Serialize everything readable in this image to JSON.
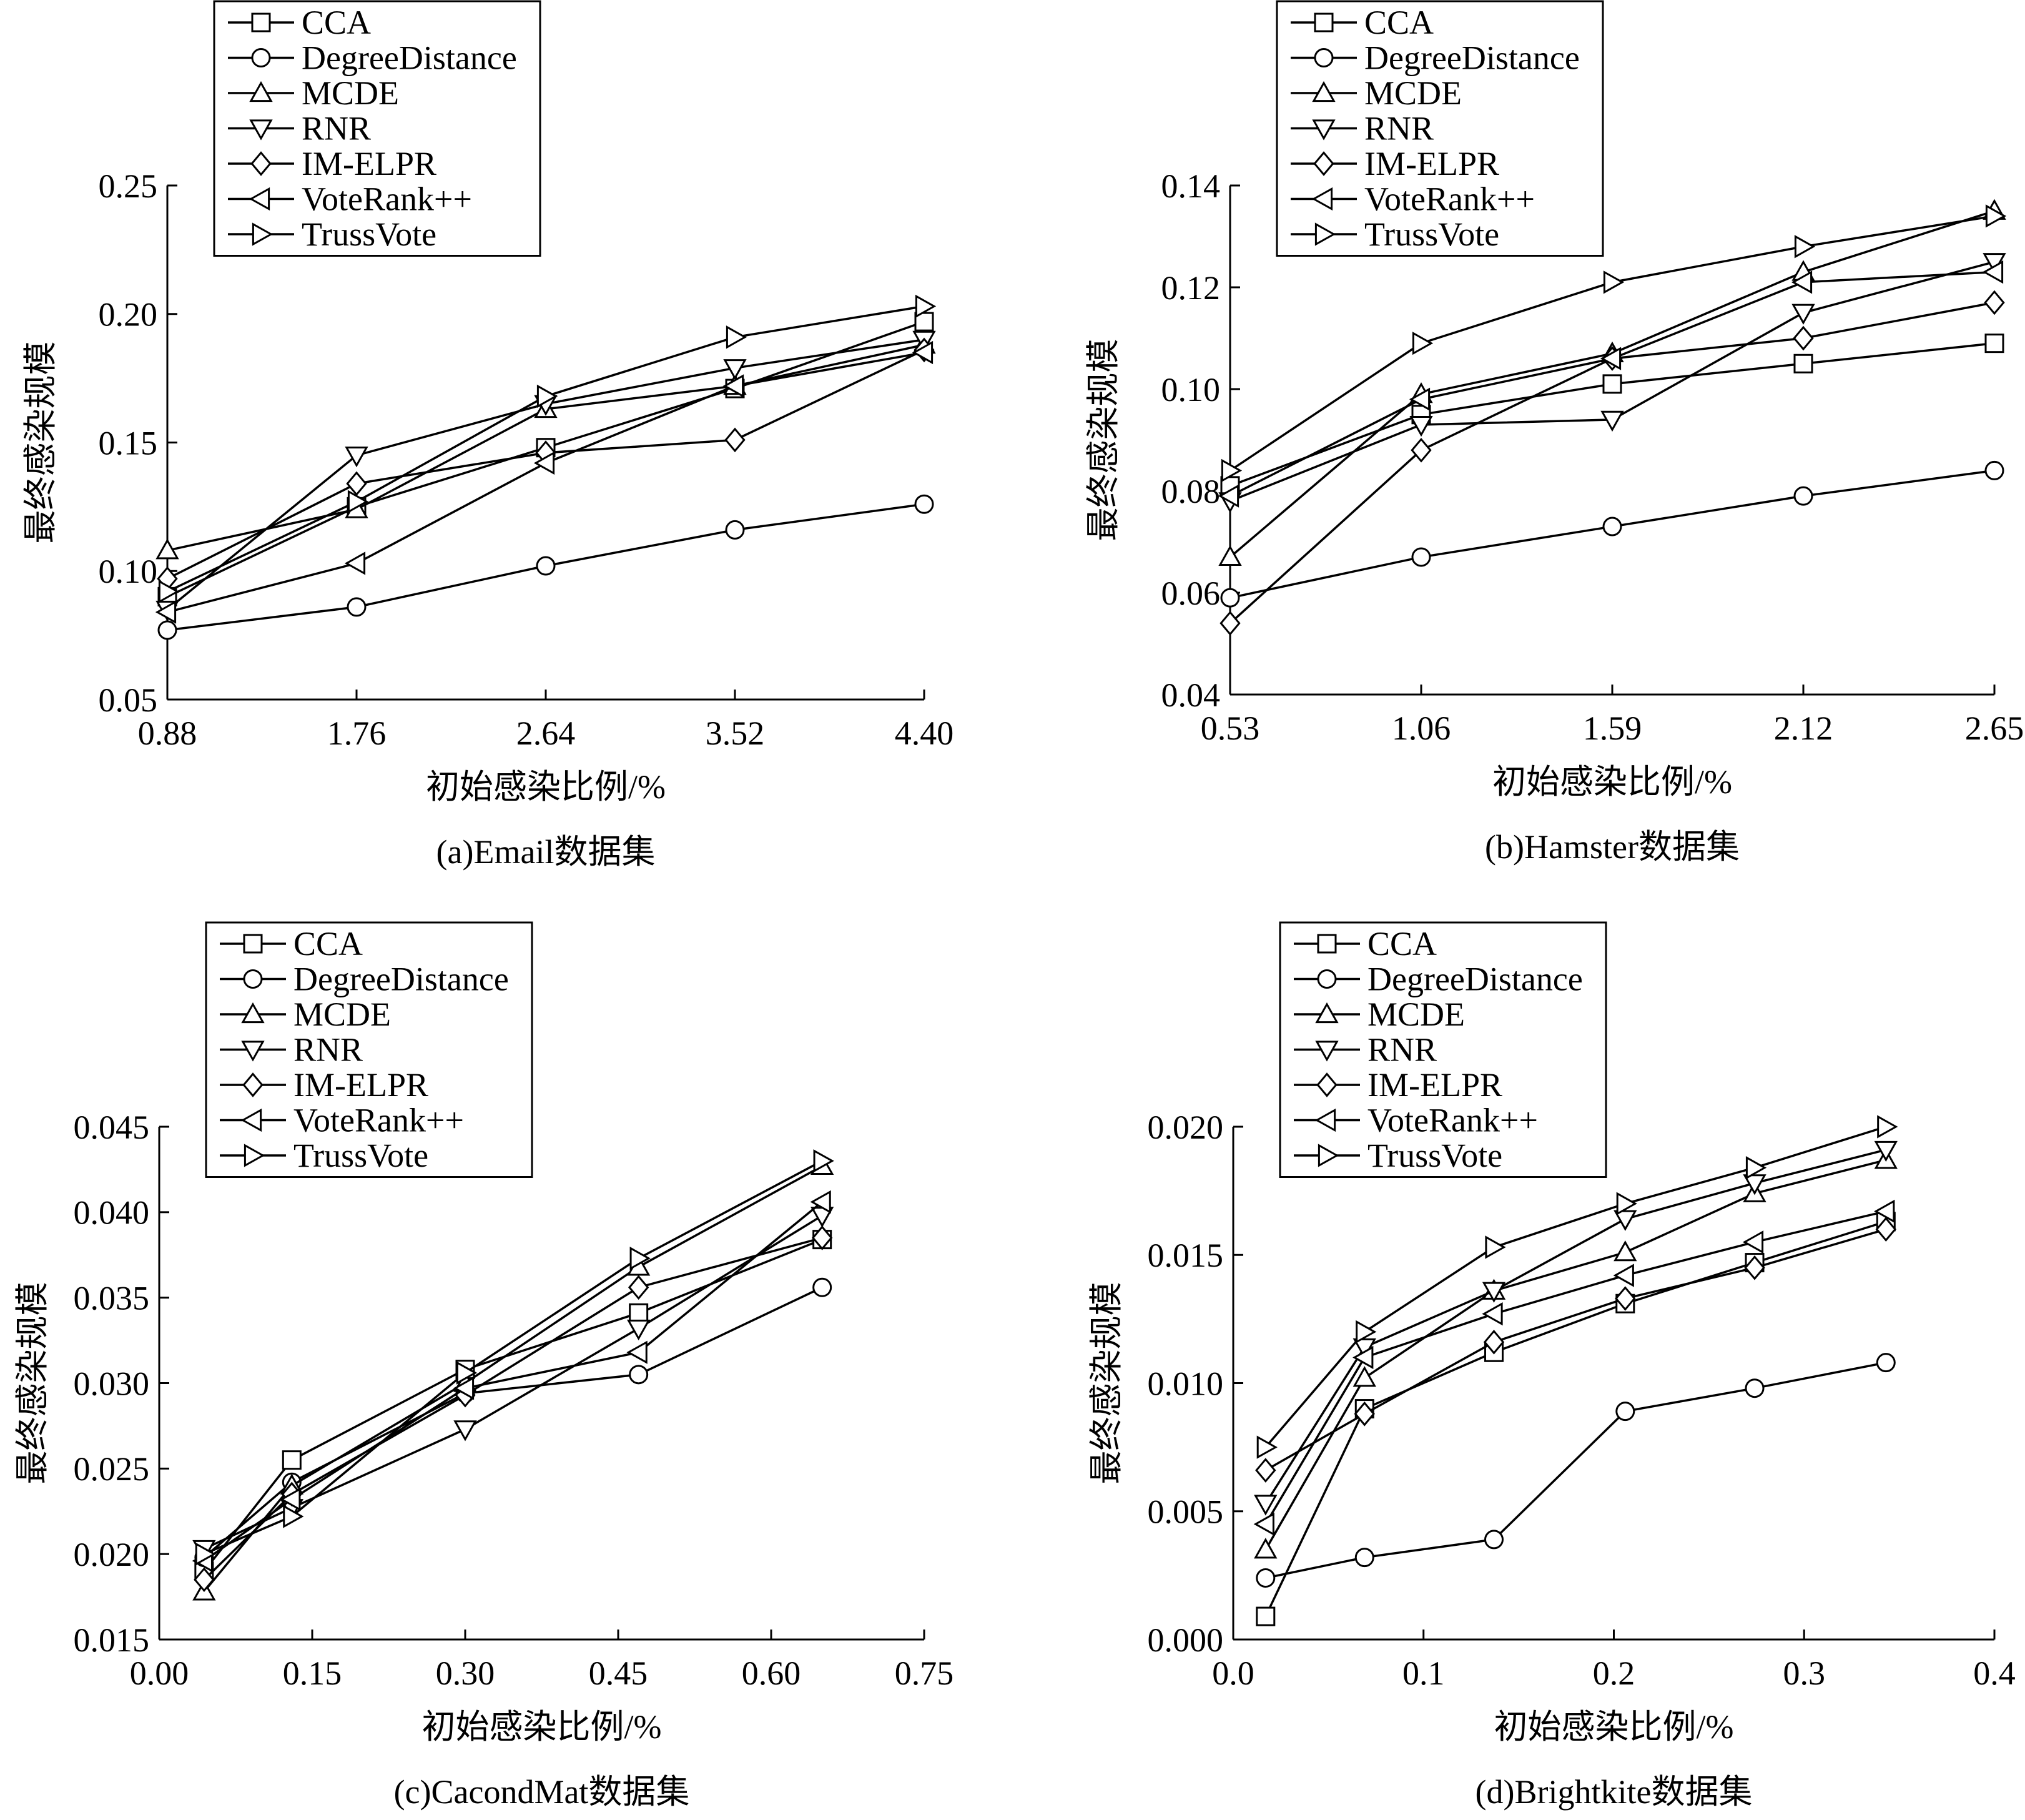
{
  "series_names": [
    "CCA",
    "DegreeDistance",
    "MCDE",
    "RNR",
    "IM-ELPR",
    "VoteRank++",
    "TrussVote"
  ],
  "markers": [
    "square",
    "circle",
    "triangle-up",
    "triangle-down",
    "diamond",
    "triangle-left",
    "triangle-right"
  ],
  "line_color": "#000000",
  "chart_data": [
    {
      "type": "line",
      "caption": "(a)Email数据集",
      "xlabel": "初始感染比例/%",
      "ylabel": "最终感染规模",
      "xlim": [
        0.88,
        4.4
      ],
      "ylim": [
        0.05,
        0.25
      ],
      "xticks": [
        "0.88",
        "1.76",
        "2.64",
        "3.52",
        "4.40"
      ],
      "yticks": [
        "0.05",
        "0.10",
        "0.15",
        "0.20",
        "0.25"
      ],
      "x": [
        0.88,
        1.76,
        2.64,
        3.52,
        4.4
      ],
      "grid": false,
      "legend": "top-left",
      "series": [
        {
          "name": "CCA",
          "values": [
            0.09,
            0.125,
            0.148,
            0.171,
            0.197
          ]
        },
        {
          "name": "DegreeDistance",
          "values": [
            0.077,
            0.086,
            0.102,
            0.116,
            0.126
          ]
        },
        {
          "name": "MCDE",
          "values": [
            0.108,
            0.124,
            0.163,
            0.172,
            0.188
          ]
        },
        {
          "name": "RNR",
          "values": [
            0.085,
            0.145,
            0.165,
            0.179,
            0.19
          ]
        },
        {
          "name": "IM-ELPR",
          "values": [
            0.097,
            0.134,
            0.146,
            0.151,
            0.186
          ]
        },
        {
          "name": "VoteRank++",
          "values": [
            0.084,
            0.103,
            0.142,
            0.172,
            0.185
          ]
        },
        {
          "name": "TrussVote",
          "values": [
            0.092,
            0.127,
            0.168,
            0.191,
            0.203
          ]
        }
      ]
    },
    {
      "type": "line",
      "caption": "(b)Hamster数据集",
      "xlabel": "初始感染比例/%",
      "ylabel": "最终感染规模",
      "xlim": [
        0.53,
        2.65
      ],
      "ylim": [
        0.04,
        0.14
      ],
      "xticks": [
        "0.53",
        "1.06",
        "1.59",
        "2.12",
        "2.65"
      ],
      "yticks": [
        "0.04",
        "0.06",
        "0.08",
        "0.10",
        "0.12",
        "0.14"
      ],
      "x": [
        0.53,
        1.06,
        1.59,
        2.12,
        2.65
      ],
      "grid": false,
      "legend": "top-left",
      "series": [
        {
          "name": "CCA",
          "values": [
            0.081,
            0.095,
            0.101,
            0.105,
            0.109
          ]
        },
        {
          "name": "DegreeDistance",
          "values": [
            0.059,
            0.067,
            0.073,
            0.079,
            0.084
          ]
        },
        {
          "name": "MCDE",
          "values": [
            0.067,
            0.099,
            0.107,
            0.123,
            0.135
          ]
        },
        {
          "name": "RNR",
          "values": [
            0.078,
            0.093,
            0.094,
            0.115,
            0.125
          ]
        },
        {
          "name": "IM-ELPR",
          "values": [
            0.054,
            0.088,
            0.106,
            0.11,
            0.117
          ]
        },
        {
          "name": "VoteRank++",
          "values": [
            0.079,
            0.098,
            0.106,
            0.121,
            0.123
          ]
        },
        {
          "name": "TrussVote",
          "values": [
            0.084,
            0.109,
            0.121,
            0.128,
            0.134
          ]
        }
      ]
    },
    {
      "type": "line",
      "caption": "(c)CacondMat数据集",
      "xlabel": "初始感染比例/%",
      "ylabel": "最终感染规模",
      "xlim": [
        0.0,
        0.75
      ],
      "ylim": [
        0.015,
        0.045
      ],
      "xticks": [
        "0.00",
        "0.15",
        "0.30",
        "0.45",
        "0.60",
        "0.75"
      ],
      "yticks": [
        "0.015",
        "0.020",
        "0.025",
        "0.030",
        "0.035",
        "0.040",
        "0.045"
      ],
      "x": [
        0.044,
        0.13,
        0.3,
        0.47,
        0.65
      ],
      "grid": false,
      "legend": "top-left",
      "series": [
        {
          "name": "CCA",
          "values": [
            0.019,
            0.0255,
            0.0308,
            0.0341,
            0.0384
          ]
        },
        {
          "name": "DegreeDistance",
          "values": [
            0.0198,
            0.0242,
            0.0294,
            0.0305,
            0.0356
          ]
        },
        {
          "name": "MCDE",
          "values": [
            0.0178,
            0.024,
            0.03,
            0.0368,
            0.0427
          ]
        },
        {
          "name": "RNR",
          "values": [
            0.0203,
            0.0227,
            0.0273,
            0.0332,
            0.0398
          ]
        },
        {
          "name": "IM-ELPR",
          "values": [
            0.0185,
            0.0235,
            0.0293,
            0.0356,
            0.0385
          ]
        },
        {
          "name": "VoteRank++",
          "values": [
            0.0196,
            0.0232,
            0.0297,
            0.0318,
            0.0406
          ]
        },
        {
          "name": "TrussVote",
          "values": [
            0.02,
            0.0222,
            0.0306,
            0.0373,
            0.043
          ]
        }
      ]
    },
    {
      "type": "line",
      "caption": "(d)Brightkite数据集",
      "xlabel": "初始感染比例/%",
      "ylabel": "最终感染规模",
      "xlim": [
        0.0,
        0.4
      ],
      "ylim": [
        0.0,
        0.02
      ],
      "xticks": [
        "0.0",
        "0.1",
        "0.2",
        "0.3",
        "0.4"
      ],
      "yticks": [
        "0.000",
        "0.005",
        "0.010",
        "0.015",
        "0.020"
      ],
      "x": [
        0.017,
        0.069,
        0.137,
        0.206,
        0.274,
        0.343
      ],
      "grid": false,
      "legend": "top-left",
      "series": [
        {
          "name": "CCA",
          "values": [
            0.0009,
            0.009,
            0.0112,
            0.0131,
            0.0147,
            0.0163
          ]
        },
        {
          "name": "DegreeDistance",
          "values": [
            0.0024,
            0.0032,
            0.0039,
            0.0089,
            0.0098,
            0.0108
          ]
        },
        {
          "name": "MCDE",
          "values": [
            0.0035,
            0.0102,
            0.0136,
            0.0151,
            0.0174,
            0.0187
          ]
        },
        {
          "name": "RNR",
          "values": [
            0.0053,
            0.0114,
            0.0136,
            0.0164,
            0.0178,
            0.0191
          ]
        },
        {
          "name": "IM-ELPR",
          "values": [
            0.0066,
            0.0088,
            0.0116,
            0.0133,
            0.0145,
            0.016
          ]
        },
        {
          "name": "VoteRank++",
          "values": [
            0.0045,
            0.011,
            0.0127,
            0.0142,
            0.0155,
            0.0167
          ]
        },
        {
          "name": "TrussVote",
          "values": [
            0.0075,
            0.012,
            0.0153,
            0.017,
            0.0184,
            0.02
          ]
        }
      ]
    }
  ]
}
